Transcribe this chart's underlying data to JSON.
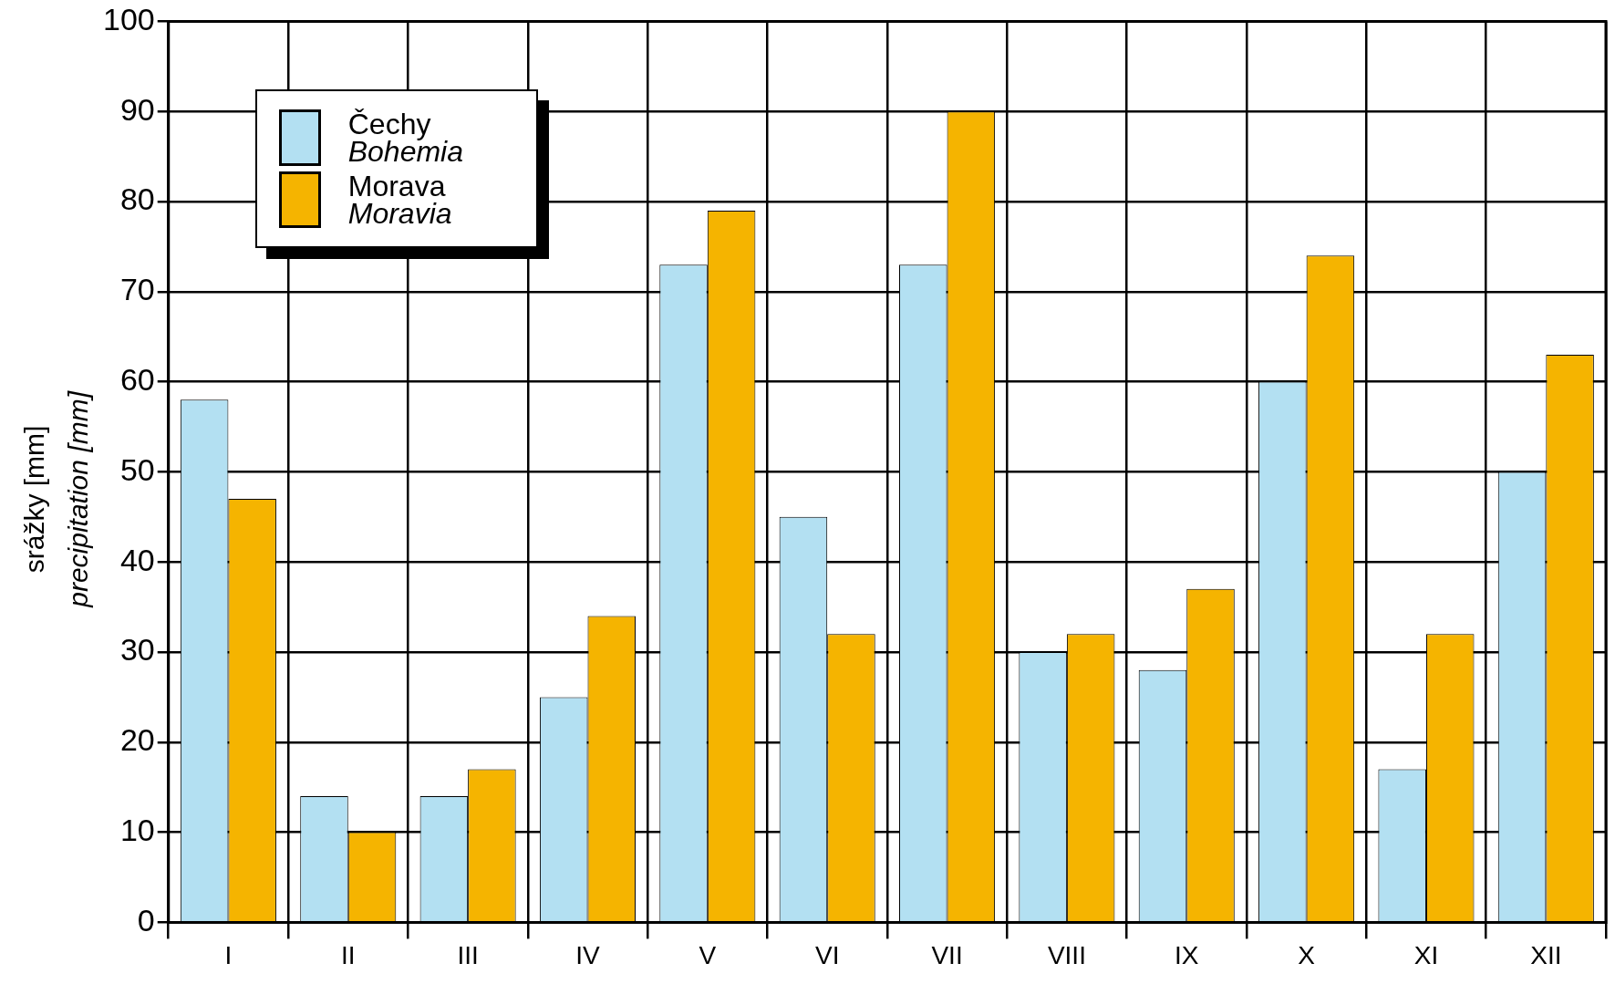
{
  "chart_data": {
    "type": "bar",
    "ylabel": "srážky [mm]\nprecipitation [mm]",
    "categories": [
      "I",
      "II",
      "III",
      "IV",
      "V",
      "VI",
      "VII",
      "VIII",
      "IX",
      "X",
      "XI",
      "XII"
    ],
    "series": [
      {
        "name": "Čechy\nBohemia",
        "color": "#b3e0f2",
        "values": [
          58,
          14,
          14,
          25,
          73,
          45,
          73,
          30,
          28,
          60,
          17,
          50
        ]
      },
      {
        "name": "Morava\nMoravia",
        "color": "#f5b400",
        "values": [
          47,
          10,
          17,
          34,
          79,
          32,
          90,
          32,
          37,
          74,
          32,
          63
        ]
      }
    ],
    "ylim": [
      0,
      100
    ],
    "yticks": [
      0,
      10,
      20,
      30,
      40,
      50,
      60,
      70,
      80,
      90,
      100
    ],
    "grid": true,
    "legend": "top left"
  }
}
